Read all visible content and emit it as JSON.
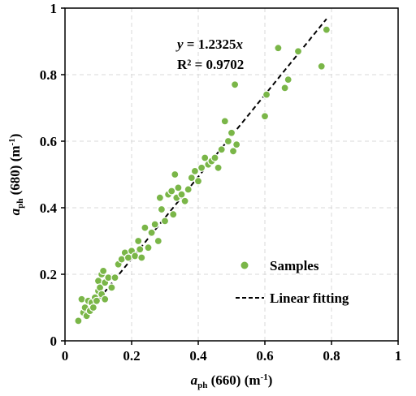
{
  "chart_data": {
    "type": "scatter",
    "title": "",
    "x_axis": {
      "label_main": "a",
      "label_sub": "ph",
      "label_rest": " (660) (m",
      "label_sup": "-1",
      "label_close": ")",
      "range": [
        0,
        1
      ],
      "ticks": [
        "0",
        "0.2",
        "0.4",
        "0.6",
        "0.8",
        "1"
      ]
    },
    "y_axis": {
      "label_main": "a",
      "label_sub": "ph",
      "label_rest": " (680) (m",
      "label_sup": "-1",
      "label_close": ")",
      "range": [
        0,
        1
      ],
      "ticks": [
        "0",
        "0.2",
        "0.4",
        "0.6",
        "0.8",
        "1"
      ]
    },
    "grid": true,
    "grid_style": "dashed",
    "legend_position": "bottom-right",
    "equation": {
      "line1_prefix": "y",
      "line1_mid": " = 1.2325",
      "line1_var": "x",
      "line2": "R² = 0.9702"
    },
    "fit_line": {
      "name": "Linear fitting",
      "slope": 1.2325,
      "x_range": [
        0.04,
        0.785
      ],
      "color": "#000000",
      "style": "dashed"
    },
    "series": [
      {
        "name": "Samples",
        "color": "#7ab648",
        "points": [
          [
            0.04,
            0.06
          ],
          [
            0.05,
            0.125
          ],
          [
            0.055,
            0.085
          ],
          [
            0.06,
            0.1
          ],
          [
            0.065,
            0.075
          ],
          [
            0.07,
            0.12
          ],
          [
            0.075,
            0.09
          ],
          [
            0.08,
            0.115
          ],
          [
            0.085,
            0.1
          ],
          [
            0.09,
            0.13
          ],
          [
            0.095,
            0.12
          ],
          [
            0.1,
            0.15
          ],
          [
            0.1,
            0.18
          ],
          [
            0.105,
            0.16
          ],
          [
            0.11,
            0.2
          ],
          [
            0.11,
            0.14
          ],
          [
            0.115,
            0.21
          ],
          [
            0.12,
            0.175
          ],
          [
            0.12,
            0.125
          ],
          [
            0.13,
            0.19
          ],
          [
            0.14,
            0.16
          ],
          [
            0.15,
            0.19
          ],
          [
            0.16,
            0.23
          ],
          [
            0.17,
            0.245
          ],
          [
            0.18,
            0.265
          ],
          [
            0.19,
            0.25
          ],
          [
            0.2,
            0.27
          ],
          [
            0.21,
            0.255
          ],
          [
            0.22,
            0.3
          ],
          [
            0.225,
            0.275
          ],
          [
            0.23,
            0.25
          ],
          [
            0.24,
            0.34
          ],
          [
            0.25,
            0.28
          ],
          [
            0.26,
            0.325
          ],
          [
            0.27,
            0.35
          ],
          [
            0.28,
            0.3
          ],
          [
            0.285,
            0.43
          ],
          [
            0.29,
            0.395
          ],
          [
            0.3,
            0.36
          ],
          [
            0.31,
            0.44
          ],
          [
            0.32,
            0.45
          ],
          [
            0.325,
            0.38
          ],
          [
            0.33,
            0.5
          ],
          [
            0.335,
            0.43
          ],
          [
            0.34,
            0.46
          ],
          [
            0.35,
            0.44
          ],
          [
            0.36,
            0.42
          ],
          [
            0.37,
            0.455
          ],
          [
            0.38,
            0.49
          ],
          [
            0.39,
            0.51
          ],
          [
            0.4,
            0.48
          ],
          [
            0.41,
            0.52
          ],
          [
            0.42,
            0.55
          ],
          [
            0.43,
            0.53
          ],
          [
            0.44,
            0.54
          ],
          [
            0.45,
            0.55
          ],
          [
            0.46,
            0.52
          ],
          [
            0.47,
            0.575
          ],
          [
            0.48,
            0.66
          ],
          [
            0.49,
            0.6
          ],
          [
            0.5,
            0.625
          ],
          [
            0.505,
            0.57
          ],
          [
            0.51,
            0.77
          ],
          [
            0.515,
            0.59
          ],
          [
            0.6,
            0.675
          ],
          [
            0.605,
            0.74
          ],
          [
            0.64,
            0.88
          ],
          [
            0.66,
            0.76
          ],
          [
            0.67,
            0.785
          ],
          [
            0.7,
            0.87
          ],
          [
            0.77,
            0.825
          ],
          [
            0.785,
            0.935
          ]
        ]
      }
    ]
  }
}
